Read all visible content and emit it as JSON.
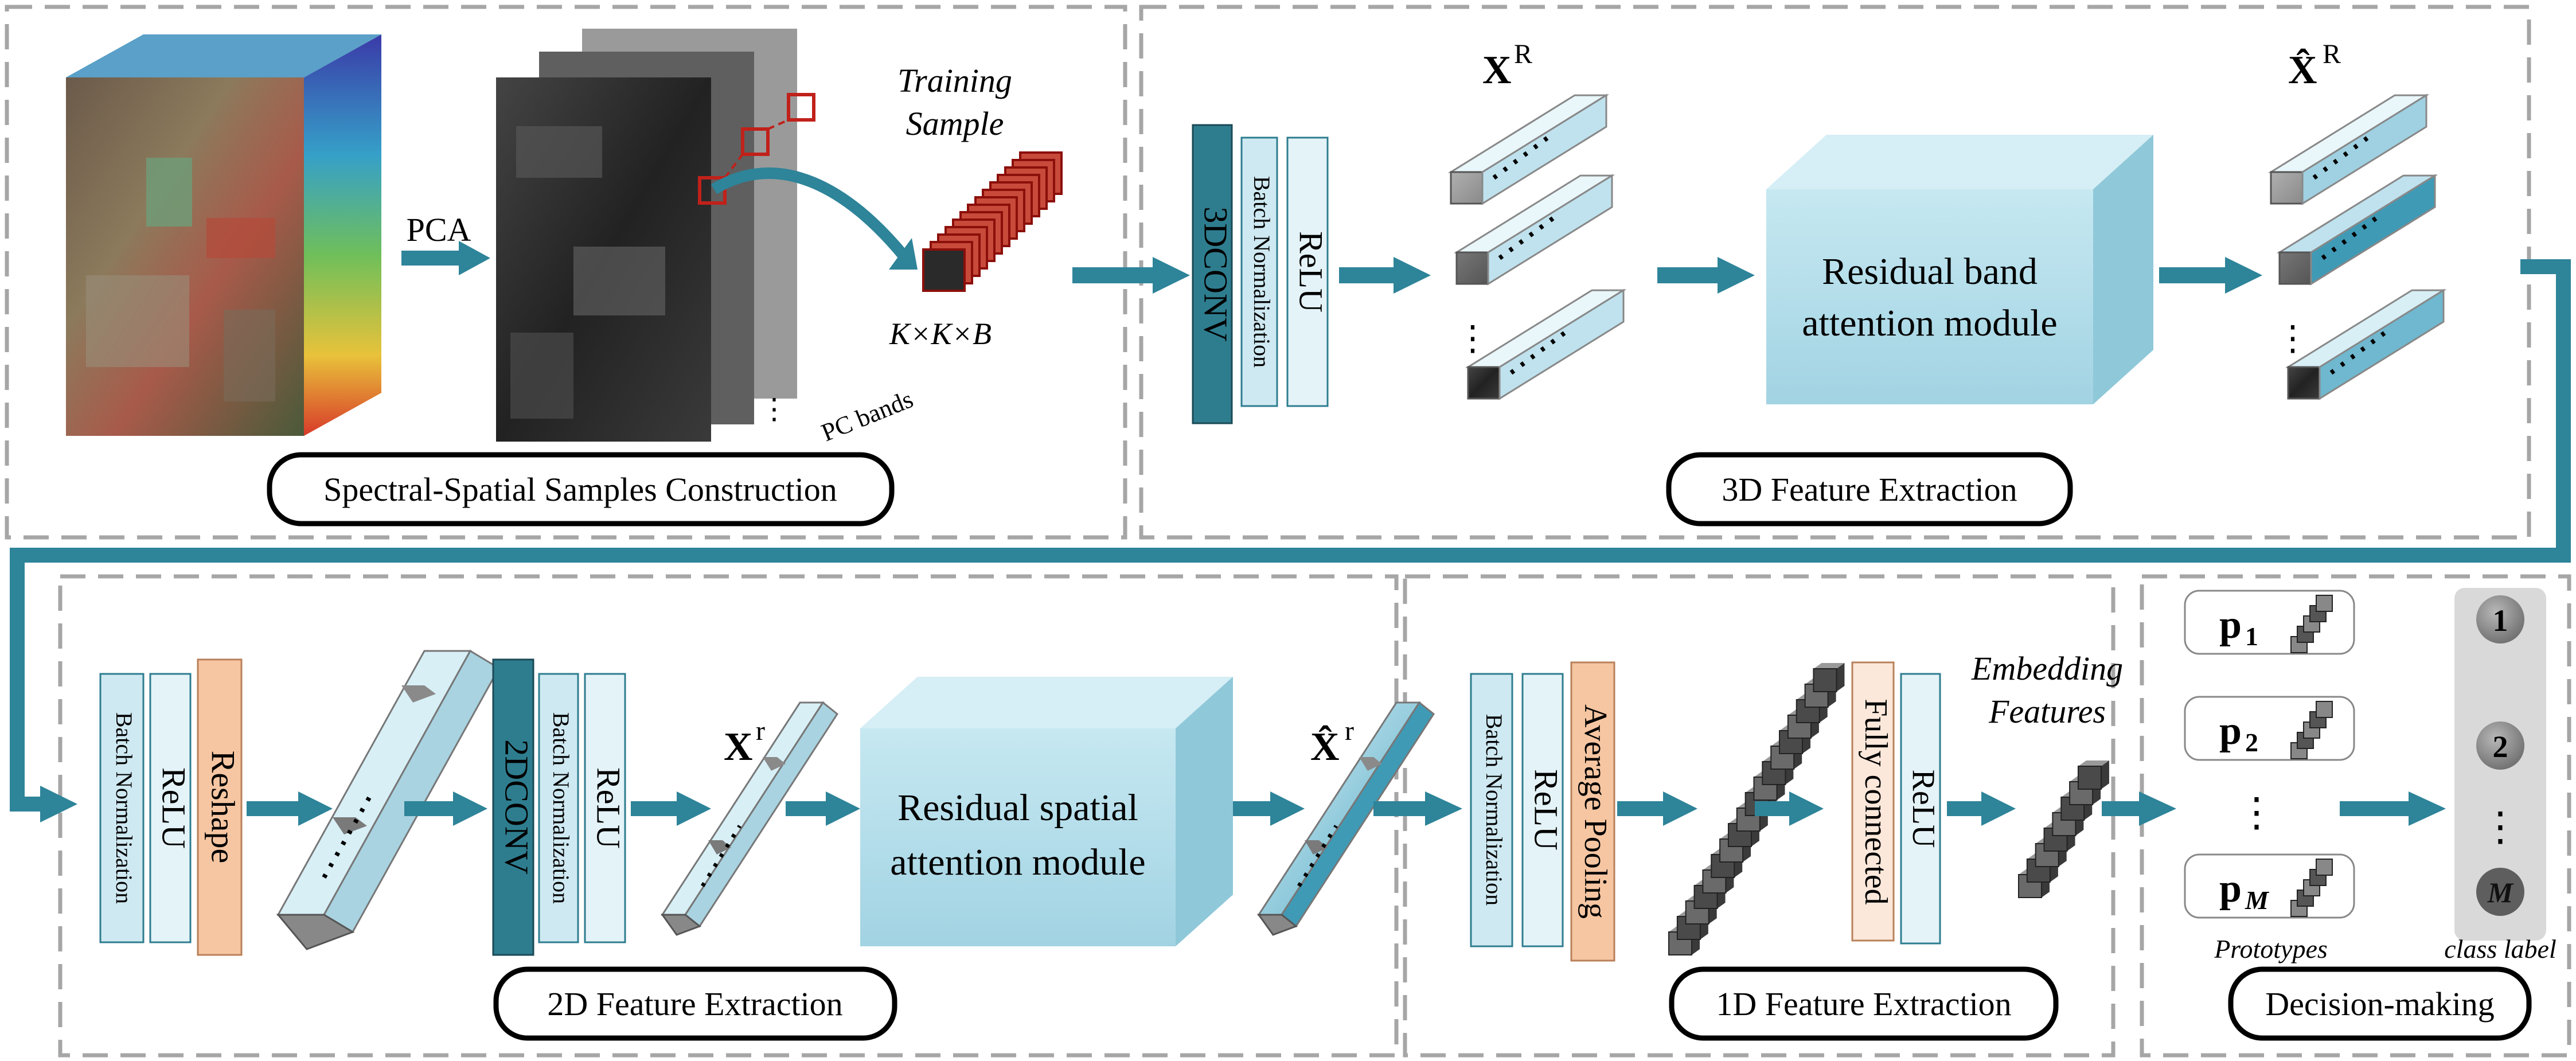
{
  "sections": {
    "spectral_spatial": "Spectral-Spatial Samples Construction",
    "feature_3d": "3D Feature Extraction",
    "feature_2d": "2D Feature Extraction",
    "feature_1d": "1D Feature Extraction",
    "decision": "Decision-making"
  },
  "labels": {
    "pca": "PCA",
    "training_sample_line1": "Training",
    "training_sample_line2": "Sample",
    "kxkxb": "K×K×B",
    "pc_bands": "PC bands",
    "xR": "X",
    "xR_sup": "R",
    "xhatR": "X̂",
    "xhatR_sup": "R",
    "xr": "X",
    "xr_sup": "r",
    "xhatr": "X̂",
    "xhatr_sup": "r",
    "embedding_line1": "Embedding",
    "embedding_line2": "Features",
    "prototypes": "Prototypes",
    "class_label": "class label",
    "ellipsis": "⋮"
  },
  "layers": {
    "conv3d": "3DCONV",
    "bn": "Batch Normalization",
    "relu": "ReLU",
    "reshape": "Reshape",
    "conv2d": "2DCONV",
    "avgpool": "Average Pooling",
    "fc": "Fully connected"
  },
  "modules": {
    "rba_line1": "Residual band",
    "rba_line2": "attention module",
    "rsa_line1": "Residual spatial",
    "rsa_line2": "attention module"
  },
  "prototypes": [
    {
      "label": "p",
      "sub": "1"
    },
    {
      "label": "p",
      "sub": "2"
    },
    {
      "label": "p",
      "sub": "M"
    }
  ],
  "classes": [
    "1",
    "2",
    "M"
  ],
  "colors": {
    "arrow": "#2e8499",
    "dash": "#a6a6a6",
    "conv_dark": "#2e7d8f",
    "light_blue": "#cfe9f2",
    "lighter_blue": "#e4f3f8",
    "orange": "#f6c6a2",
    "module_face": "#a9d8e6"
  }
}
